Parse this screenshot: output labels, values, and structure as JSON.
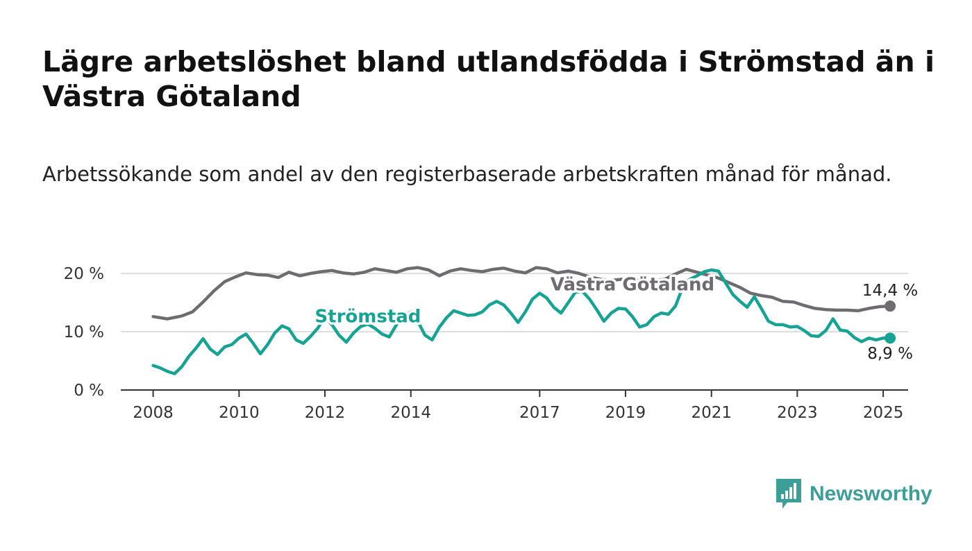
{
  "header": {
    "title": "Lägre arbetslöshet bland utlandsfödda i Strömstad än i Västra Götaland",
    "subtitle": "Arbetssökande som andel av den registerbaserade arbetskraften månad för månad."
  },
  "logo": {
    "text": "Newsworthy",
    "color": "#3d9d97",
    "icon": "bar-chart-speech-bubble-icon"
  },
  "chart_data": {
    "type": "line",
    "x_type": "date",
    "xlim": [
      "2007-04-01",
      "2025-08-01"
    ],
    "ylim": [
      0,
      20
    ],
    "x_ticks": [
      {
        "date": "2008-01-01",
        "label": "2008"
      },
      {
        "date": "2010-01-01",
        "label": "2010"
      },
      {
        "date": "2012-01-01",
        "label": "2012"
      },
      {
        "date": "2014-01-01",
        "label": "2014"
      },
      {
        "date": "2017-01-01",
        "label": "2017"
      },
      {
        "date": "2019-01-01",
        "label": "2019"
      },
      {
        "date": "2021-01-01",
        "label": "2021"
      },
      {
        "date": "2023-01-01",
        "label": "2023"
      },
      {
        "date": "2025-01-01",
        "label": "2025"
      }
    ],
    "y_ticks": [
      {
        "value": 0,
        "label": "0 %"
      },
      {
        "value": 10,
        "label": "10 %"
      },
      {
        "value": 20,
        "label": "20 %"
      }
    ],
    "grid": "horizontal",
    "series": [
      {
        "name": "Västra Götaland",
        "color": "#6e6c70",
        "end_label": "14,4 %",
        "points": [
          [
            "2008-01-01",
            12.6
          ],
          [
            "2008-05-01",
            12.2
          ],
          [
            "2008-09-01",
            12.7
          ],
          [
            "2008-12-01",
            13.4
          ],
          [
            "2009-03-01",
            15.1
          ],
          [
            "2009-06-01",
            17.0
          ],
          [
            "2009-09-01",
            18.6
          ],
          [
            "2009-12-01",
            19.4
          ],
          [
            "2010-03-01",
            20.1
          ],
          [
            "2010-06-01",
            19.8
          ],
          [
            "2010-09-01",
            19.7
          ],
          [
            "2010-12-01",
            19.3
          ],
          [
            "2011-03-01",
            20.2
          ],
          [
            "2011-06-01",
            19.6
          ],
          [
            "2011-09-01",
            20.0
          ],
          [
            "2011-12-01",
            20.3
          ],
          [
            "2012-03-01",
            20.5
          ],
          [
            "2012-06-01",
            20.1
          ],
          [
            "2012-09-01",
            19.9
          ],
          [
            "2012-12-01",
            20.2
          ],
          [
            "2013-03-01",
            20.8
          ],
          [
            "2013-06-01",
            20.5
          ],
          [
            "2013-09-01",
            20.2
          ],
          [
            "2013-12-01",
            20.8
          ],
          [
            "2014-03-01",
            21.0
          ],
          [
            "2014-06-01",
            20.6
          ],
          [
            "2014-09-01",
            19.6
          ],
          [
            "2014-12-01",
            20.4
          ],
          [
            "2015-03-01",
            20.8
          ],
          [
            "2015-06-01",
            20.5
          ],
          [
            "2015-09-01",
            20.3
          ],
          [
            "2015-12-01",
            20.7
          ],
          [
            "2016-03-01",
            20.9
          ],
          [
            "2016-06-01",
            20.4
          ],
          [
            "2016-09-01",
            20.1
          ],
          [
            "2016-12-01",
            21.0
          ],
          [
            "2017-03-01",
            20.8
          ],
          [
            "2017-06-01",
            20.1
          ],
          [
            "2017-09-01",
            20.4
          ],
          [
            "2017-12-01",
            20.0
          ],
          [
            "2018-03-01",
            19.4
          ],
          [
            "2018-06-01",
            19.0
          ],
          [
            "2018-09-01",
            18.8
          ],
          [
            "2018-12-01",
            19.0
          ],
          [
            "2019-03-01",
            18.7
          ],
          [
            "2019-06-01",
            18.9
          ],
          [
            "2019-09-01",
            18.8
          ],
          [
            "2019-12-01",
            19.0
          ],
          [
            "2020-03-01",
            19.9
          ],
          [
            "2020-06-01",
            20.7
          ],
          [
            "2020-09-01",
            20.2
          ],
          [
            "2020-12-01",
            19.7
          ],
          [
            "2021-03-01",
            19.2
          ],
          [
            "2021-06-01",
            18.4
          ],
          [
            "2021-09-01",
            17.6
          ],
          [
            "2021-12-01",
            16.6
          ],
          [
            "2022-03-01",
            16.2
          ],
          [
            "2022-06-01",
            15.9
          ],
          [
            "2022-09-01",
            15.2
          ],
          [
            "2022-12-01",
            15.1
          ],
          [
            "2023-03-01",
            14.5
          ],
          [
            "2023-06-01",
            14.0
          ],
          [
            "2023-09-01",
            13.8
          ],
          [
            "2023-12-01",
            13.7
          ],
          [
            "2024-03-01",
            13.7
          ],
          [
            "2024-06-01",
            13.6
          ],
          [
            "2024-09-01",
            14.0
          ],
          [
            "2024-12-01",
            14.3
          ],
          [
            "2025-03-01",
            14.4
          ]
        ]
      },
      {
        "name": "Strömstad",
        "color": "#16a394",
        "end_label": "8,9 %",
        "points": [
          [
            "2008-01-01",
            4.2
          ],
          [
            "2008-03-01",
            3.8
          ],
          [
            "2008-05-01",
            3.2
          ],
          [
            "2008-07-01",
            2.8
          ],
          [
            "2008-09-01",
            4.0
          ],
          [
            "2008-11-01",
            5.8
          ],
          [
            "2009-01-01",
            7.2
          ],
          [
            "2009-03-01",
            8.8
          ],
          [
            "2009-05-01",
            7.0
          ],
          [
            "2009-07-01",
            6.1
          ],
          [
            "2009-09-01",
            7.4
          ],
          [
            "2009-11-01",
            7.8
          ],
          [
            "2010-01-01",
            8.9
          ],
          [
            "2010-03-01",
            9.6
          ],
          [
            "2010-05-01",
            8.0
          ],
          [
            "2010-07-01",
            6.2
          ],
          [
            "2010-09-01",
            7.8
          ],
          [
            "2010-11-01",
            9.8
          ],
          [
            "2011-01-01",
            11.0
          ],
          [
            "2011-03-01",
            10.5
          ],
          [
            "2011-05-01",
            8.6
          ],
          [
            "2011-07-01",
            8.0
          ],
          [
            "2011-09-01",
            9.2
          ],
          [
            "2011-11-01",
            10.6
          ],
          [
            "2012-01-01",
            12.4
          ],
          [
            "2012-03-01",
            11.2
          ],
          [
            "2012-05-01",
            9.4
          ],
          [
            "2012-07-01",
            8.2
          ],
          [
            "2012-09-01",
            9.8
          ],
          [
            "2012-11-01",
            10.9
          ],
          [
            "2013-01-01",
            11.3
          ],
          [
            "2013-03-01",
            10.6
          ],
          [
            "2013-05-01",
            9.6
          ],
          [
            "2013-07-01",
            9.1
          ],
          [
            "2013-09-01",
            11.2
          ],
          [
            "2013-11-01",
            12.6
          ],
          [
            "2014-01-01",
            13.4
          ],
          [
            "2014-03-01",
            11.8
          ],
          [
            "2014-05-01",
            9.4
          ],
          [
            "2014-07-01",
            8.6
          ],
          [
            "2014-09-01",
            10.8
          ],
          [
            "2014-11-01",
            12.4
          ],
          [
            "2015-01-01",
            13.6
          ],
          [
            "2015-03-01",
            13.2
          ],
          [
            "2015-05-01",
            12.8
          ],
          [
            "2015-07-01",
            12.9
          ],
          [
            "2015-09-01",
            13.4
          ],
          [
            "2015-11-01",
            14.6
          ],
          [
            "2016-01-01",
            15.2
          ],
          [
            "2016-03-01",
            14.6
          ],
          [
            "2016-05-01",
            13.2
          ],
          [
            "2016-07-01",
            11.6
          ],
          [
            "2016-09-01",
            13.4
          ],
          [
            "2016-11-01",
            15.6
          ],
          [
            "2017-01-01",
            16.6
          ],
          [
            "2017-03-01",
            15.8
          ],
          [
            "2017-05-01",
            14.2
          ],
          [
            "2017-07-01",
            13.2
          ],
          [
            "2017-09-01",
            15.0
          ],
          [
            "2017-11-01",
            16.8
          ],
          [
            "2018-01-01",
            16.9
          ],
          [
            "2018-03-01",
            15.6
          ],
          [
            "2018-05-01",
            13.8
          ],
          [
            "2018-07-01",
            11.8
          ],
          [
            "2018-09-01",
            13.2
          ],
          [
            "2018-11-01",
            14.0
          ],
          [
            "2019-01-01",
            13.9
          ],
          [
            "2019-03-01",
            12.6
          ],
          [
            "2019-05-01",
            10.8
          ],
          [
            "2019-07-01",
            11.2
          ],
          [
            "2019-09-01",
            12.6
          ],
          [
            "2019-11-01",
            13.2
          ],
          [
            "2020-01-01",
            13.0
          ],
          [
            "2020-03-01",
            14.4
          ],
          [
            "2020-05-01",
            17.6
          ],
          [
            "2020-07-01",
            19.0
          ],
          [
            "2020-09-01",
            19.6
          ],
          [
            "2020-11-01",
            20.3
          ],
          [
            "2021-01-01",
            20.6
          ],
          [
            "2021-03-01",
            20.4
          ],
          [
            "2021-05-01",
            18.4
          ],
          [
            "2021-07-01",
            16.4
          ],
          [
            "2021-09-01",
            15.2
          ],
          [
            "2021-11-01",
            14.2
          ],
          [
            "2022-01-01",
            16.0
          ],
          [
            "2022-03-01",
            14.0
          ],
          [
            "2022-05-01",
            11.8
          ],
          [
            "2022-07-01",
            11.2
          ],
          [
            "2022-09-01",
            11.2
          ],
          [
            "2022-11-01",
            10.8
          ],
          [
            "2023-01-01",
            10.9
          ],
          [
            "2023-03-01",
            10.2
          ],
          [
            "2023-05-01",
            9.3
          ],
          [
            "2023-07-01",
            9.2
          ],
          [
            "2023-09-01",
            10.2
          ],
          [
            "2023-11-01",
            12.2
          ],
          [
            "2024-01-01",
            10.3
          ],
          [
            "2024-03-01",
            10.1
          ],
          [
            "2024-05-01",
            9.0
          ],
          [
            "2024-07-01",
            8.3
          ],
          [
            "2024-09-01",
            8.9
          ],
          [
            "2024-11-01",
            8.6
          ],
          [
            "2025-01-01",
            8.9
          ],
          [
            "2025-03-01",
            8.9
          ]
        ]
      }
    ]
  }
}
